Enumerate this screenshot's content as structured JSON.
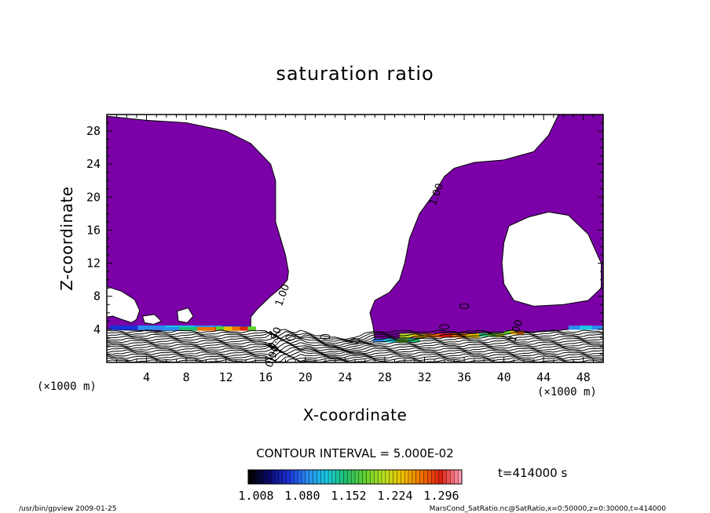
{
  "chart_data": {
    "type": "heatmap",
    "title": "saturation ratio",
    "xlabel": "X-coordinate",
    "ylabel": "Z-coordinate",
    "x_unit": "(×1000 m)",
    "x_unit_right": "(×1000 m)",
    "xlim": [
      0,
      50
    ],
    "ylim": [
      0,
      30
    ],
    "x_ticks": [
      4,
      8,
      12,
      16,
      20,
      24,
      28,
      32,
      36,
      40,
      44,
      48
    ],
    "y_ticks": [
      4,
      8,
      12,
      16,
      20,
      24,
      28
    ],
    "contour_interval_label": "CONTOUR INTERVAL = 5.000E-02",
    "time_label": "t=414000 s",
    "colorbar": {
      "min": 1.008,
      "max": 1.296,
      "tick_labels": [
        "1.008",
        "1.080",
        "1.152",
        "1.224",
        "1.296"
      ],
      "colors": [
        "#000000",
        "#0a0a6e",
        "#1a2fd6",
        "#2a8cf0",
        "#18c8e0",
        "#20c070",
        "#60d030",
        "#b8e020",
        "#f0c000",
        "#f07000",
        "#e02010",
        "#ff9bb0"
      ]
    },
    "contour_labels": [
      {
        "text": "1.00",
        "x": 33.5,
        "z": 20.2
      },
      {
        "text": "1.00",
        "x": 18.0,
        "z": 8.0
      },
      {
        "text": "1.00",
        "x": 41.5,
        "z": 3.7
      },
      {
        "text": "0.90",
        "x": 17.2,
        "z": 2.8
      },
      {
        "text": "0.90",
        "x": 17.0,
        "z": 0.6
      }
    ],
    "supersaturated_region_color": "#7b00a8",
    "regions": [
      {
        "name": "west-cloud",
        "points": [
          [
            0,
            29.8
          ],
          [
            4,
            29.3
          ],
          [
            8,
            29.0
          ],
          [
            12,
            28.0
          ],
          [
            14.5,
            26.5
          ],
          [
            16.5,
            24.0
          ],
          [
            17,
            22
          ],
          [
            17,
            17
          ],
          [
            17.5,
            15
          ],
          [
            18,
            13
          ],
          [
            18.3,
            11
          ],
          [
            18.2,
            10
          ],
          [
            17.5,
            9
          ],
          [
            16.5,
            8
          ],
          [
            15.2,
            6.5
          ],
          [
            14.5,
            5.5
          ],
          [
            14.5,
            4.2
          ],
          [
            13,
            4.0
          ],
          [
            10,
            4.0
          ],
          [
            8,
            3.9
          ],
          [
            5,
            3.8
          ],
          [
            2,
            3.9
          ],
          [
            0,
            4.0
          ]
        ]
      },
      {
        "name": "west-gap-1",
        "points": [
          [
            0,
            9.2
          ],
          [
            1.5,
            8.6
          ],
          [
            2.8,
            7.6
          ],
          [
            3.3,
            6.3
          ],
          [
            3,
            5.2
          ],
          [
            2.5,
            4.8
          ],
          [
            1.5,
            5.2
          ],
          [
            0.6,
            5.6
          ],
          [
            0,
            5.5
          ]
        ]
      },
      {
        "name": "west-gap-2",
        "points": [
          [
            3.6,
            5.6
          ],
          [
            4.8,
            5.8
          ],
          [
            5.5,
            5.0
          ],
          [
            4.7,
            4.6
          ],
          [
            3.8,
            4.8
          ]
        ]
      },
      {
        "name": "west-gap-3",
        "points": [
          [
            7.1,
            6.2
          ],
          [
            8.2,
            6.6
          ],
          [
            8.7,
            5.6
          ],
          [
            8.1,
            4.8
          ],
          [
            7.2,
            5.0
          ]
        ]
      },
      {
        "name": "east-cloud",
        "points": [
          [
            27,
            2.8
          ],
          [
            26.8,
            4.5
          ],
          [
            26.5,
            6
          ],
          [
            27,
            7.5
          ],
          [
            28.5,
            8.5
          ],
          [
            29.5,
            10
          ],
          [
            30,
            12
          ],
          [
            30.5,
            15
          ],
          [
            31.5,
            18
          ],
          [
            33,
            20.5
          ],
          [
            34,
            22.5
          ],
          [
            35,
            23.5
          ],
          [
            37,
            24.2
          ],
          [
            40,
            24.5
          ],
          [
            43,
            25.5
          ],
          [
            44.5,
            27.5
          ],
          [
            45.5,
            30
          ],
          [
            50,
            30
          ],
          [
            50,
            4.3
          ],
          [
            48,
            4.2
          ],
          [
            45,
            3.8
          ],
          [
            42,
            3.6
          ],
          [
            38,
            3.6
          ],
          [
            35,
            3.5
          ],
          [
            32,
            3.0
          ],
          [
            29,
            2.6
          ]
        ]
      },
      {
        "name": "east-hole",
        "points": [
          [
            40.5,
            16.5
          ],
          [
            42.5,
            17.6
          ],
          [
            44.5,
            18.2
          ],
          [
            46.5,
            17.8
          ],
          [
            48.5,
            15.5
          ],
          [
            49.8,
            12
          ],
          [
            49.8,
            9
          ],
          [
            48.5,
            7.5
          ],
          [
            46,
            7.0
          ],
          [
            43,
            6.8
          ],
          [
            41,
            7.5
          ],
          [
            40,
            9.5
          ],
          [
            39.8,
            12
          ],
          [
            40,
            14.5
          ]
        ]
      }
    ]
  },
  "footer": {
    "left": "/usr/bin/gpview   2009-01-25",
    "right": "MarsCond_SatRatio.nc@SatRatio,x=0:50000,z=0:30000,t=414000"
  }
}
